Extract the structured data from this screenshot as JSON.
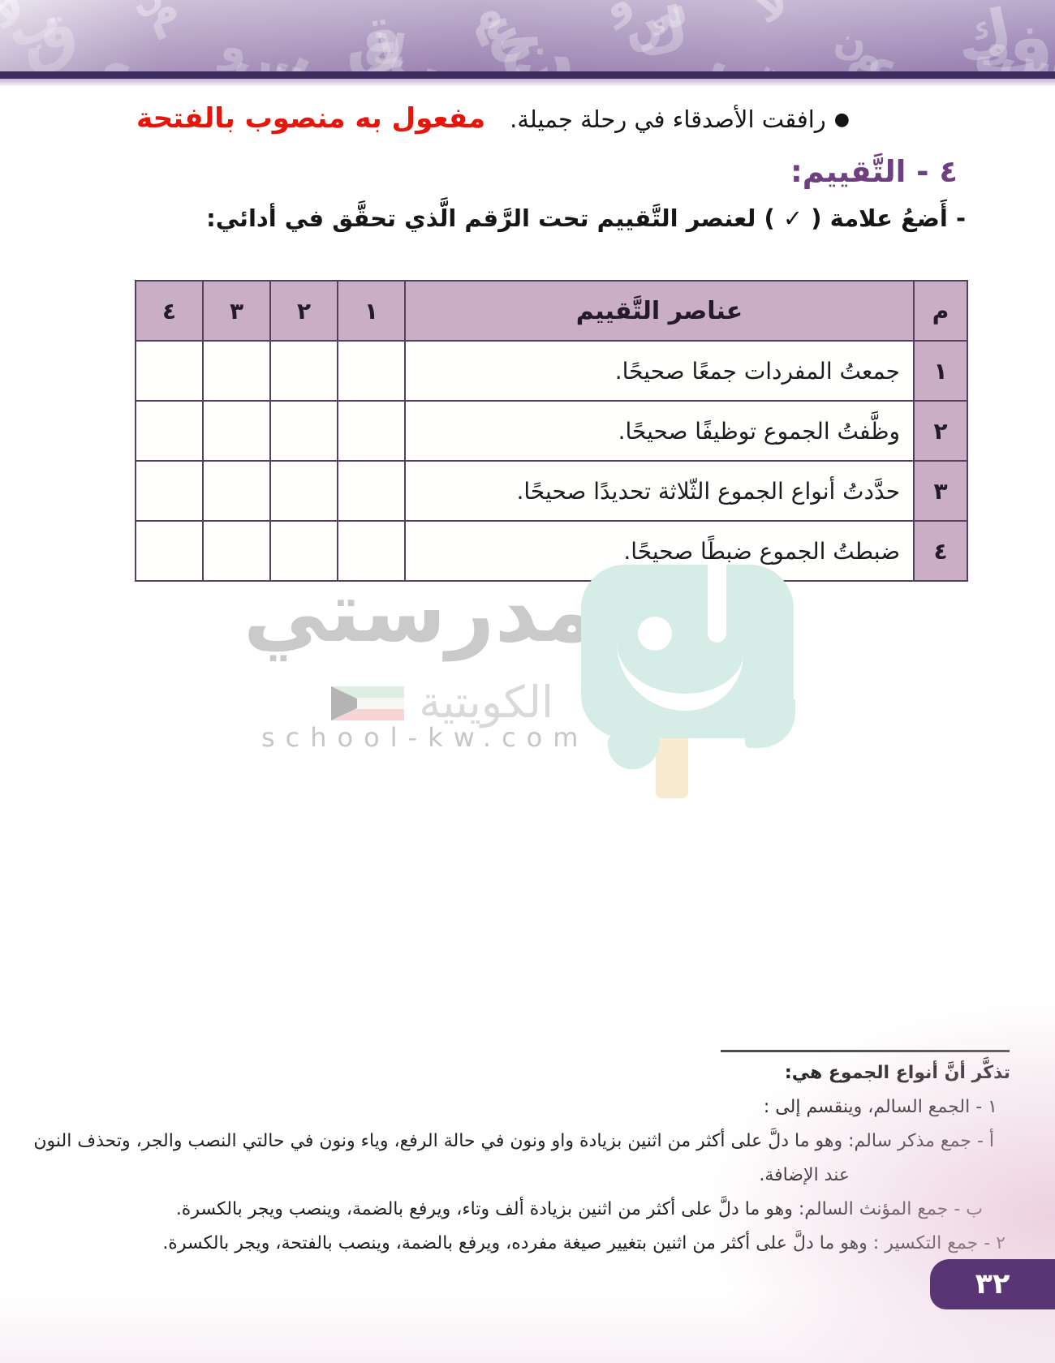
{
  "example_line": {
    "sentence": "رافقت الأصدقاء في رحلة جميلة.",
    "annotation": "مفعول به منصوب بالفتحة"
  },
  "section": {
    "title": "٤ - التَّقييم:",
    "instruction": "- أَضعُ علامة ( ✓ ) لعنصر التَّقييم تحت الرَّقم الَّذي تحقَّق في أدائي:"
  },
  "table": {
    "headers": {
      "index": "م",
      "criteria": "عناصر التَّقييم",
      "numbers": [
        "١",
        "٢",
        "٣",
        "٤"
      ]
    },
    "rows": [
      {
        "num": "١",
        "criteria": "جمعتُ المفردات جمعًا صحيحًا."
      },
      {
        "num": "٢",
        "criteria": "وظَّفتُ الجموع توظيفًا صحيحًا."
      },
      {
        "num": "٣",
        "criteria": "حدَّدتُ أنواع الجموع الثّلاثة تحديدًا صحيحًا."
      },
      {
        "num": "٤",
        "criteria": "ضبطتُ الجموع ضبطًا صحيحًا."
      }
    ]
  },
  "watermark": {
    "title": "مدرستي",
    "subtitle": "الكويتية",
    "url": "school-kw.com"
  },
  "footnote": {
    "intro": "تذكَّر أنَّ أنواع الجموع هي:",
    "item1": "١ - الجمع السالم، وينقسم إلى :",
    "item1a_line1": "أ - جمع مذكر سالم: وهو ما دلَّ على أكثر من اثنين بزيادة واو ونون في حالة الرفع، وياء ونون في حالتي النصب والجر، وتحذف النون",
    "item1a_line2": "عند الإضافة.",
    "item1b": "ب - جمع المؤنث السالم: وهو ما دلَّ على أكثر من اثنين بزيادة ألف وتاء، ويرفع بالضمة، وينصب ويجر بالكسرة.",
    "item2": "٢ - جمع التكسير : وهو ما دلَّ على أكثر من اثنين بتغيير صيغة مفرده، ويرفع بالضمة، وينصب بالفتحة، ويجر بالكسرة."
  },
  "page_number": "٣٢",
  "bullet_glyph": "●",
  "decor": {
    "glyphs": [
      "غ",
      "ع",
      "و",
      "ق",
      "م",
      "ف",
      "ب",
      "ن",
      "ك",
      "لا",
      "ح",
      "س"
    ]
  },
  "colors": {
    "accent_purple": "#6e4080",
    "table_header_bg": "#c9aec6",
    "table_border": "#54405f",
    "annotation_red": "#e81309",
    "band_dark_stripe": "#3f2c5e",
    "page_box_purple": "#5a3576",
    "mascot_teal": "#d6ece6",
    "stick_beige": "#f9ead2"
  }
}
